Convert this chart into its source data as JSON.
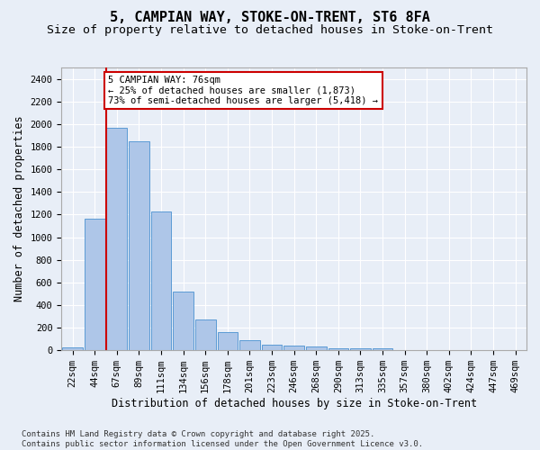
{
  "title1": "5, CAMPIAN WAY, STOKE-ON-TRENT, ST6 8FA",
  "title2": "Size of property relative to detached houses in Stoke-on-Trent",
  "xlabel": "Distribution of detached houses by size in Stoke-on-Trent",
  "ylabel": "Number of detached properties",
  "categories": [
    "22sqm",
    "44sqm",
    "67sqm",
    "89sqm",
    "111sqm",
    "134sqm",
    "156sqm",
    "178sqm",
    "201sqm",
    "223sqm",
    "246sqm",
    "268sqm",
    "290sqm",
    "313sqm",
    "335sqm",
    "357sqm",
    "380sqm",
    "402sqm",
    "424sqm",
    "447sqm",
    "469sqm"
  ],
  "values": [
    28,
    1160,
    1970,
    1850,
    1230,
    515,
    275,
    160,
    93,
    50,
    42,
    30,
    18,
    20,
    14,
    5,
    5,
    5,
    5,
    5,
    5
  ],
  "bar_color": "#aec6e8",
  "bar_edge_color": "#5b9bd5",
  "background_color": "#e8eef7",
  "grid_color": "#ffffff",
  "annotation_text": "5 CAMPIAN WAY: 76sqm\n← 25% of detached houses are smaller (1,873)\n73% of semi-detached houses are larger (5,418) →",
  "annotation_box_color": "#ffffff",
  "annotation_box_edge": "#cc0000",
  "vline_color": "#cc0000",
  "ylim": [
    0,
    2500
  ],
  "yticks": [
    0,
    200,
    400,
    600,
    800,
    1000,
    1200,
    1400,
    1600,
    1800,
    2000,
    2200,
    2400
  ],
  "footer": "Contains HM Land Registry data © Crown copyright and database right 2025.\nContains public sector information licensed under the Open Government Licence v3.0.",
  "title1_fontsize": 11,
  "title2_fontsize": 9.5,
  "xlabel_fontsize": 8.5,
  "ylabel_fontsize": 8.5,
  "tick_fontsize": 7.5,
  "annotation_fontsize": 7.5,
  "footer_fontsize": 6.5
}
